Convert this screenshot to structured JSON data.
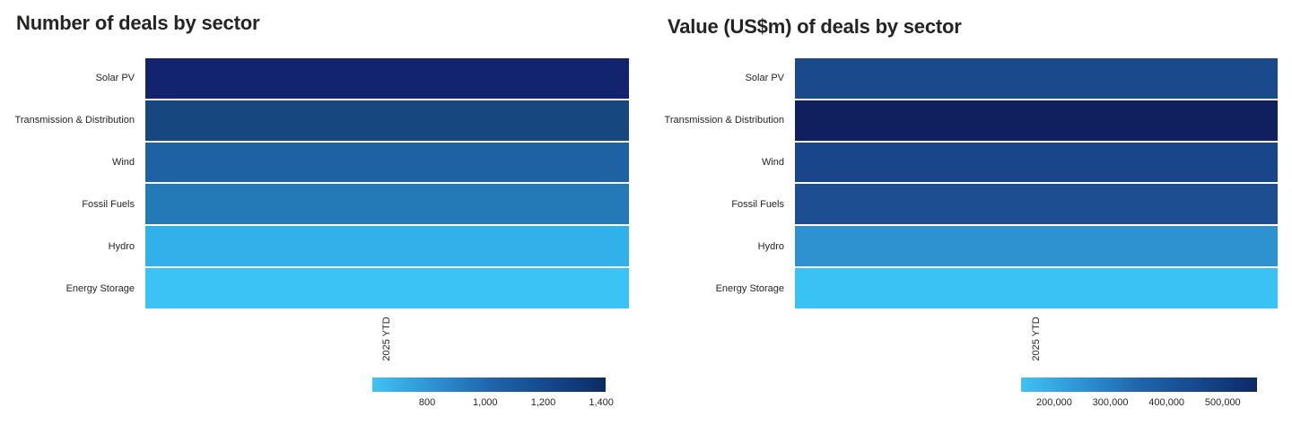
{
  "page": {
    "background": "#ffffff",
    "text_color": "#252423"
  },
  "chart_data": [
    {
      "type": "heatmap",
      "title": "Number of deals by sector",
      "column_header": "2025 YTD",
      "legend_position": "bottom",
      "categories": [
        "Solar PV",
        "Transmission & Distribution",
        "Wind",
        "Fossil Fuels",
        "Hydro",
        "Energy Storage"
      ],
      "cells": [
        {
          "category": "Solar PV",
          "color": "#12246d",
          "approx_value": 1410
        },
        {
          "category": "Transmission & Distribution",
          "color": "#16477f",
          "approx_value": 1270
        },
        {
          "category": "Wind",
          "color": "#1f62a3",
          "approx_value": 1120
        },
        {
          "category": "Fossil Fuels",
          "color": "#2479b7",
          "approx_value": 1000
        },
        {
          "category": "Hydro",
          "color": "#32b0e9",
          "approx_value": 710
        },
        {
          "category": "Energy Storage",
          "color": "#3cc3f5",
          "approx_value": 615
        }
      ],
      "scale": {
        "min": 611,
        "max": 1415,
        "ticks": [
          800,
          1000,
          1200,
          1400
        ],
        "tick_labels": [
          "800",
          "1,000",
          "1,200",
          "1,400"
        ],
        "gradient": [
          "#41c2f3",
          "#2d94d6",
          "#1f66ad",
          "#15488b",
          "#0d2a66"
        ]
      }
    },
    {
      "type": "heatmap",
      "title": "Value (US$m) of deals by sector",
      "column_header": "2025 YTD",
      "legend_position": "bottom",
      "categories": [
        "Solar PV",
        "Transmission & Distribution",
        "Wind",
        "Fossil Fuels",
        "Hydro",
        "Energy Storage"
      ],
      "cells": [
        {
          "category": "Solar PV",
          "color": "#1b4a8c",
          "approx_value": 475000
        },
        {
          "category": "Transmission & Distribution",
          "color": "#101f5e",
          "approx_value": 560000
        },
        {
          "category": "Wind",
          "color": "#19468a",
          "approx_value": 480000
        },
        {
          "category": "Fossil Fuels",
          "color": "#1d4e92",
          "approx_value": 465000
        },
        {
          "category": "Hydro",
          "color": "#2e91d0",
          "approx_value": 280000
        },
        {
          "category": "Energy Storage",
          "color": "#3ac2f4",
          "approx_value": 145000
        }
      ],
      "scale": {
        "min": 141000,
        "max": 561000,
        "ticks": [
          200000,
          300000,
          400000,
          500000
        ],
        "tick_labels": [
          "200,000",
          "300,000",
          "400,000",
          "500,000"
        ],
        "gradient": [
          "#41c2f3",
          "#2d94d6",
          "#1f66ad",
          "#15488b",
          "#0d2a66"
        ]
      }
    }
  ]
}
